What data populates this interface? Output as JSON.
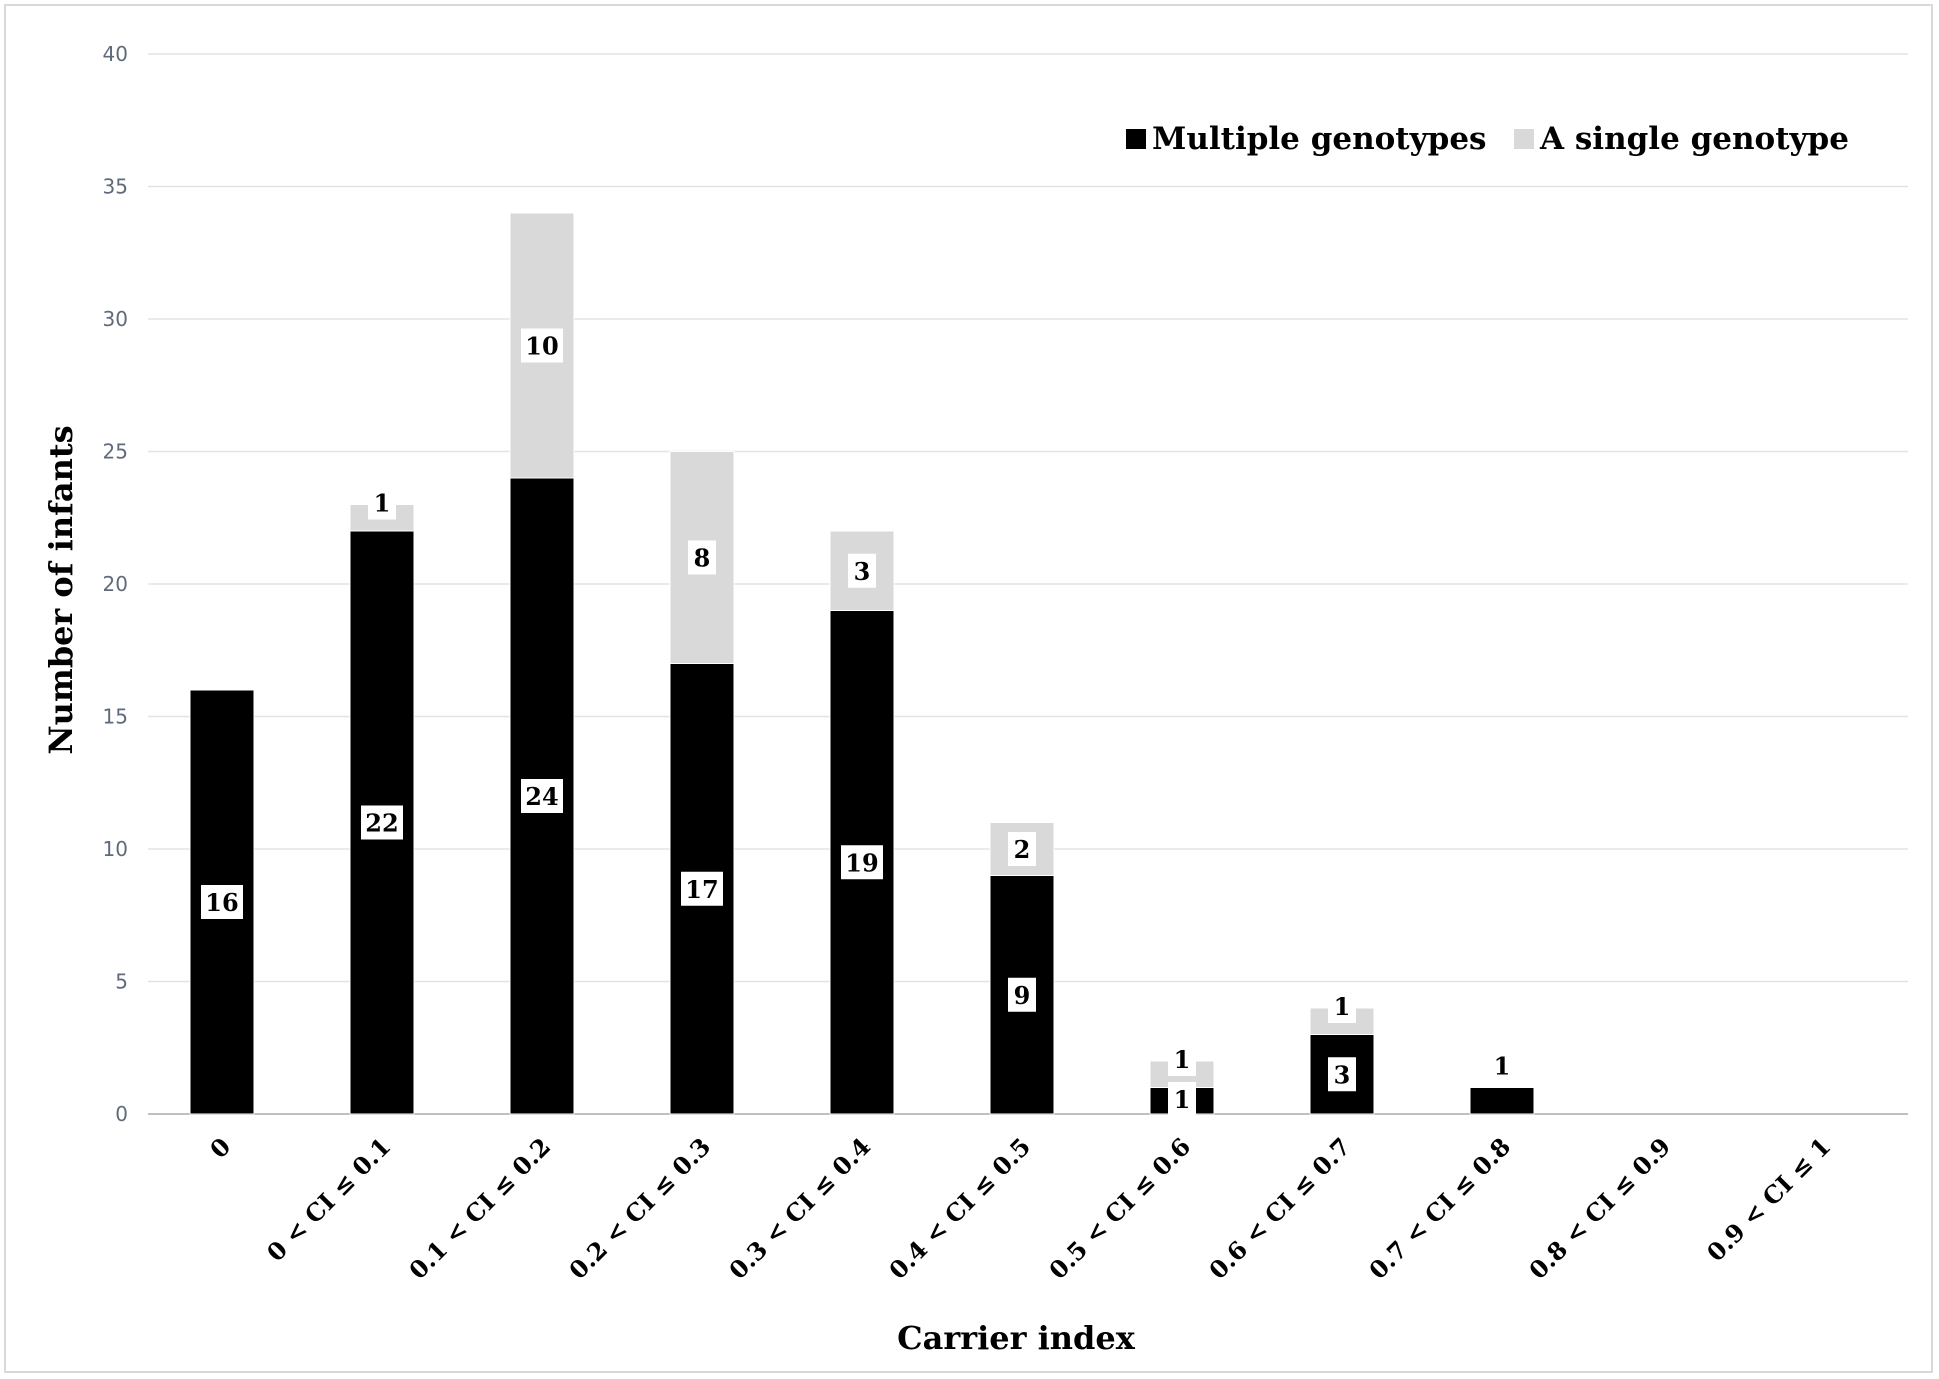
{
  "chart_data": {
    "type": "bar",
    "stacked": true,
    "xlabel": "Carrier index",
    "ylabel": "Number of infants",
    "ylim": [
      0,
      40
    ],
    "yticks": [
      0,
      5,
      10,
      15,
      20,
      25,
      30,
      35,
      40
    ],
    "grid": true,
    "legend_position": "top-right",
    "categories": [
      "0",
      "0 < CI ≤ 0.1",
      "0.1 < CI ≤ 0.2",
      "0.2 < CI ≤ 0.3",
      "0.3 < CI ≤ 0.4",
      "0.4 < CI ≤ 0.5",
      "0.5 < CI ≤ 0.6",
      "0.6 < CI ≤ 0.7",
      "0.7 < CI ≤ 0.8",
      "0.8 < CI ≤ 0.9",
      "0.9 < CI ≤ 1"
    ],
    "series": [
      {
        "name": "Multiple genotypes",
        "color": "#000000",
        "values": [
          16,
          22,
          24,
          17,
          19,
          9,
          1,
          3,
          1,
          0,
          0
        ]
      },
      {
        "name": "A single genotype",
        "color": "#d9d9d9",
        "values": [
          0,
          1,
          10,
          8,
          3,
          2,
          1,
          1,
          0,
          0,
          0
        ]
      }
    ]
  }
}
